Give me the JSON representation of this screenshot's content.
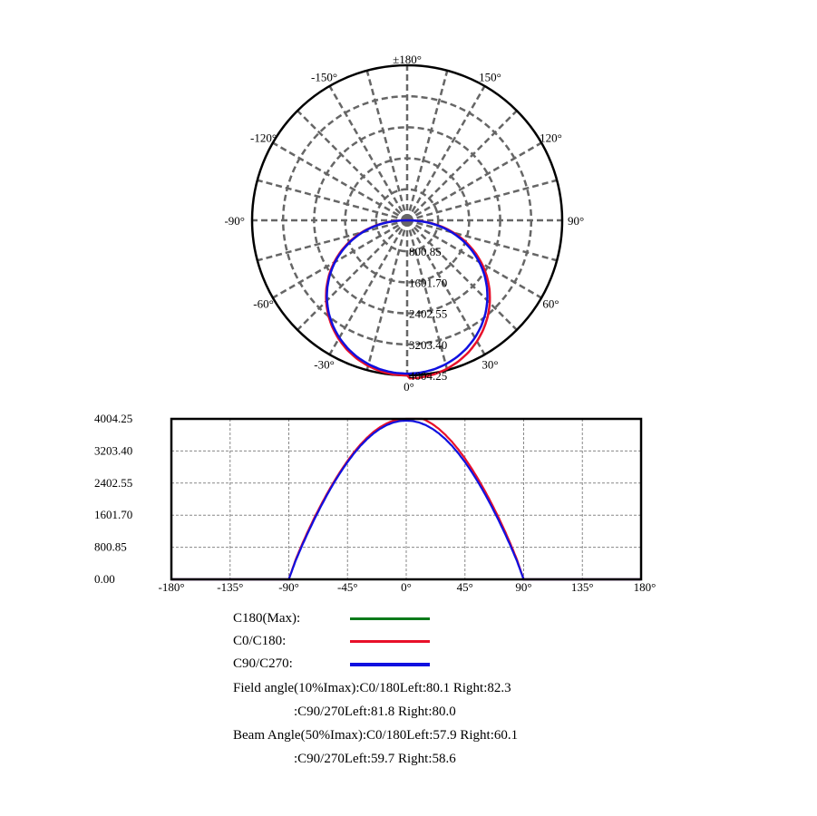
{
  "chart_data": [
    {
      "type": "polar",
      "angle_labels": [
        "±180°",
        "150°",
        "120°",
        "90°",
        "60°",
        "30°",
        "0°",
        "-30°",
        "-60°",
        "-90°",
        "-120°",
        "-150°"
      ],
      "angle_values": [
        180,
        150,
        120,
        90,
        60,
        30,
        0,
        -30,
        -60,
        -90,
        -120,
        -150
      ],
      "radial_labels": [
        "800.85",
        "1601.70",
        "2402.55",
        "3203.40",
        "4004.25"
      ],
      "radial_values": [
        800.85,
        1601.7,
        2402.55,
        3203.4,
        4004.25
      ],
      "rmax": 4004.25,
      "grid": true,
      "spoke_step_deg": 15
    },
    {
      "type": "line",
      "xlim": [
        -180,
        180
      ],
      "ylim": [
        0,
        4004.25
      ],
      "x_tick_labels": [
        "-180°",
        "-135°",
        "-90°",
        "-45°",
        "0°",
        "45°",
        "90°",
        "135°",
        "180°"
      ],
      "x_ticks": [
        -180,
        -135,
        -90,
        -45,
        0,
        45,
        90,
        135,
        180
      ],
      "y_tick_labels": [
        "4004.25",
        "3203.40",
        "2402.55",
        "1601.70",
        "800.85",
        "0.00"
      ],
      "y_ticks": [
        4004.25,
        3203.4,
        2402.55,
        1601.7,
        800.85,
        0
      ],
      "grid": true
    }
  ],
  "series_data": {
    "angles": [
      0,
      5,
      10,
      15,
      20,
      25,
      30,
      35,
      40,
      45,
      50,
      55,
      60,
      65,
      70,
      75,
      80,
      85,
      90
    ],
    "c0_c180": {
      "name": "C0/C180",
      "color": "#e8102a",
      "values": [
        4004,
        3995,
        3958,
        3892,
        3800,
        3682,
        3537,
        3368,
        3175,
        2958,
        2720,
        2460,
        2180,
        1880,
        1565,
        1225,
        865,
        470,
        0
      ]
    },
    "c90_c270": {
      "name": "C90/C270",
      "color": "#1010e0",
      "values": [
        3960,
        3950,
        3912,
        3848,
        3758,
        3642,
        3500,
        3334,
        3143,
        2928,
        2690,
        2430,
        2148,
        1845,
        1527,
        1188,
        830,
        447,
        0
      ]
    },
    "c180_max": {
      "name": "C180(Max)",
      "color": "#0a7a1a"
    }
  },
  "legend": [
    {
      "label": "C180(Max):",
      "color": "#0a7a1a"
    },
    {
      "label": "C0/C180:",
      "color": "#e8102a"
    },
    {
      "label": "C90/C270:",
      "color": "#1010e0"
    }
  ],
  "info": {
    "field_line1": "Field angle(10%Imax):C0/180Left:80.1 Right:82.3",
    "field_line2": ":C90/270Left:81.8 Right:80.0",
    "beam_line1": "Beam Angle(50%Imax):C0/180Left:57.9 Right:60.1",
    "beam_line2": ":C90/270Left:59.7 Right:58.6"
  }
}
